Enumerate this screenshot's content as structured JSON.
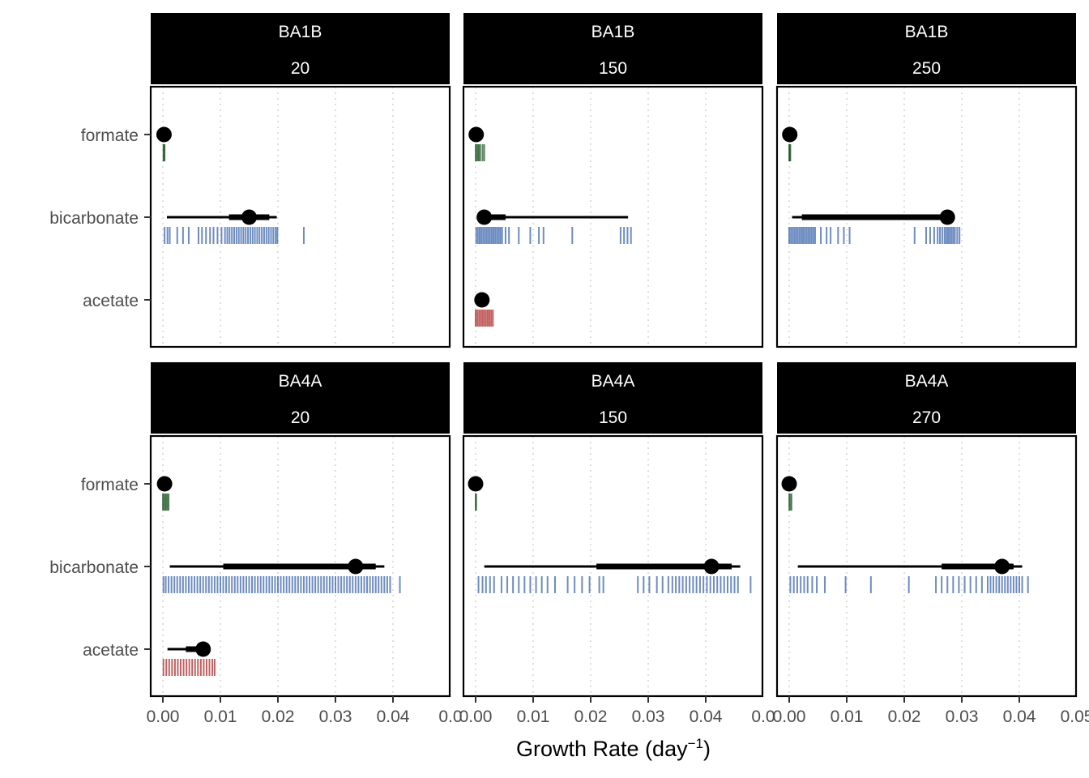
{
  "chart_data": {
    "type": "pointinterval-rug",
    "xlabel_main": "Growth Rate (day",
    "xlabel_sup": "−1",
    "xlabel_close": ")",
    "xlim": [
      0,
      0.05
    ],
    "x_ticks": [
      0.0,
      0.01,
      0.02,
      0.03,
      0.04,
      0.05
    ],
    "x_tick_labels": [
      "0.00",
      "0.01",
      "0.02",
      "0.03",
      "0.04",
      "0.05"
    ],
    "x_tick_labels_clipped": [
      "0.00",
      "0.01",
      "0.02",
      "0.03",
      "0.04",
      "0.0"
    ],
    "grid": "vertical dotted",
    "categories": [
      "formate",
      "bicarbonate",
      "acetate"
    ],
    "category_colors": {
      "formate": "#0d4a12",
      "bicarbonate": "#1f4fa0",
      "acetate": "#a30d0d"
    },
    "panels": [
      {
        "strip": [
          "BA1B",
          "20"
        ],
        "series": [
          {
            "category": "formate",
            "point": 0.0002,
            "interval_inner": [
              0.0001,
              0.0003
            ],
            "interval_outer": [
              0.0001,
              0.0004
            ],
            "rug": [
              0.0001,
              0.0002,
              0.0003
            ]
          },
          {
            "category": "bicarbonate",
            "point": 0.015,
            "interval_inner": [
              0.0115,
              0.0185
            ],
            "interval_outer": [
              0.0007,
              0.0198
            ],
            "rug": [
              0.0003,
              0.0008,
              0.0012,
              0.0025,
              0.0035,
              0.0045,
              0.0062,
              0.0068,
              0.0075,
              0.0082,
              0.0088,
              0.0095,
              0.0102,
              0.0108,
              0.0112,
              0.0116,
              0.012,
              0.0124,
              0.0128,
              0.0132,
              0.0136,
              0.014,
              0.0144,
              0.0148,
              0.0152,
              0.0156,
              0.016,
              0.0164,
              0.0168,
              0.0172,
              0.0176,
              0.018,
              0.0184,
              0.0188,
              0.0192,
              0.0196,
              0.0199,
              0.0245
            ]
          }
        ]
      },
      {
        "strip": [
          "BA1B",
          "150"
        ],
        "series": [
          {
            "category": "formate",
            "point": 0.0001,
            "interval_inner": [
              0.0,
              0.0002
            ],
            "interval_outer": [
              0.0,
              0.0003
            ],
            "rug": [
              0.0,
              0.0002,
              0.0004,
              0.0006,
              0.0008,
              0.0012,
              0.0015
            ]
          },
          {
            "category": "bicarbonate",
            "point": 0.0015,
            "interval_inner": [
              0.0005,
              0.0052
            ],
            "interval_outer": [
              0.0004,
              0.0265
            ],
            "rug": [
              0.0001,
              0.0004,
              0.0007,
              0.001,
              0.0013,
              0.0016,
              0.0019,
              0.0022,
              0.0025,
              0.0028,
              0.0031,
              0.0034,
              0.0037,
              0.004,
              0.0043,
              0.0046,
              0.0052,
              0.0058,
              0.0075,
              0.0095,
              0.011,
              0.0118,
              0.0168,
              0.0252,
              0.0258,
              0.0264,
              0.027
            ]
          },
          {
            "category": "acetate",
            "point": 0.0011,
            "interval_inner": [
              0.0008,
              0.0014
            ],
            "interval_outer": [
              0.0006,
              0.0016
            ],
            "rug": [
              0.0,
              0.0003,
              0.0006,
              0.0009,
              0.0012,
              0.0015,
              0.0018,
              0.0021,
              0.0024,
              0.0027,
              0.003
            ]
          }
        ]
      },
      {
        "strip": [
          "BA1B",
          "250"
        ],
        "series": [
          {
            "category": "formate",
            "point": 0.0001,
            "interval_inner": [
              0.0,
              0.0002
            ],
            "interval_outer": [
              0.0,
              0.0002
            ],
            "rug": [
              0.0,
              0.0001,
              0.0002
            ]
          },
          {
            "category": "bicarbonate",
            "point": 0.0275,
            "interval_inner": [
              0.0022,
              0.028
            ],
            "interval_outer": [
              0.0005,
              0.0285
            ],
            "rug": [
              0.0,
              0.0003,
              0.0006,
              0.0009,
              0.0012,
              0.0015,
              0.0018,
              0.0021,
              0.0024,
              0.0027,
              0.003,
              0.0033,
              0.0036,
              0.0039,
              0.0042,
              0.0045,
              0.0055,
              0.0065,
              0.0072,
              0.0085,
              0.0095,
              0.0105,
              0.0218,
              0.0238,
              0.0245,
              0.0252,
              0.0258,
              0.0262,
              0.0266,
              0.027,
              0.0273,
              0.0276,
              0.0279,
              0.0282,
              0.0285,
              0.0288,
              0.0292,
              0.0296
            ]
          }
        ]
      },
      {
        "strip": [
          "BA4A",
          "20"
        ],
        "series": [
          {
            "category": "formate",
            "point": 0.0003,
            "interval_inner": [
              0.0001,
              0.0005
            ],
            "interval_outer": [
              0.0,
              0.0006
            ],
            "rug": [
              0.0,
              0.0002,
              0.0004,
              0.0006,
              0.0008,
              0.001
            ]
          },
          {
            "category": "bicarbonate",
            "point": 0.0335,
            "interval_inner": [
              0.0105,
              0.037
            ],
            "interval_outer": [
              0.0012,
              0.0385
            ],
            "rug": [
              0.0001,
              0.0005,
              0.001,
              0.0015,
              0.002,
              0.0025,
              0.003,
              0.0035,
              0.004,
              0.0045,
              0.005,
              0.0055,
              0.006,
              0.0065,
              0.007,
              0.0075,
              0.008,
              0.0085,
              0.009,
              0.0095,
              0.01,
              0.0105,
              0.011,
              0.0115,
              0.012,
              0.0125,
              0.013,
              0.0135,
              0.014,
              0.0145,
              0.015,
              0.0155,
              0.016,
              0.0165,
              0.017,
              0.0175,
              0.018,
              0.0185,
              0.019,
              0.0195,
              0.02,
              0.0205,
              0.021,
              0.0215,
              0.022,
              0.0225,
              0.023,
              0.0235,
              0.024,
              0.0245,
              0.025,
              0.0255,
              0.026,
              0.0265,
              0.027,
              0.0275,
              0.028,
              0.0285,
              0.029,
              0.0295,
              0.03,
              0.0305,
              0.031,
              0.0315,
              0.032,
              0.0325,
              0.033,
              0.0335,
              0.034,
              0.0345,
              0.035,
              0.0355,
              0.036,
              0.0365,
              0.037,
              0.0375,
              0.038,
              0.0385,
              0.039,
              0.0395,
              0.0412
            ]
          },
          {
            "category": "acetate",
            "point": 0.007,
            "interval_inner": [
              0.004,
              0.0078
            ],
            "interval_outer": [
              0.0008,
              0.0082
            ],
            "rug": [
              0.0001,
              0.0006,
              0.0011,
              0.0016,
              0.0021,
              0.0026,
              0.0031,
              0.0036,
              0.0041,
              0.0046,
              0.0051,
              0.0056,
              0.0061,
              0.0066,
              0.0071,
              0.0076,
              0.0081,
              0.0086,
              0.009
            ]
          }
        ]
      },
      {
        "strip": [
          "BA4A",
          "150"
        ],
        "series": [
          {
            "category": "formate",
            "point": 0.0,
            "interval_inner": [
              0.0,
              0.0001
            ],
            "interval_outer": [
              0.0,
              0.0001
            ],
            "rug": [
              0.0,
              0.0001
            ]
          },
          {
            "category": "bicarbonate",
            "point": 0.041,
            "interval_inner": [
              0.021,
              0.0445
            ],
            "interval_outer": [
              0.0015,
              0.046
            ],
            "rug": [
              0.0005,
              0.0012,
              0.0018,
              0.0025,
              0.0032,
              0.0045,
              0.0055,
              0.0065,
              0.0075,
              0.0085,
              0.0095,
              0.0105,
              0.0115,
              0.0125,
              0.0138,
              0.016,
              0.0172,
              0.0185,
              0.0198,
              0.0215,
              0.0222,
              0.0282,
              0.0292,
              0.0302,
              0.0315,
              0.0325,
              0.0335,
              0.0342,
              0.0348,
              0.0354,
              0.036,
              0.0366,
              0.0372,
              0.0378,
              0.0384,
              0.039,
              0.0396,
              0.0402,
              0.0408,
              0.0414,
              0.042,
              0.0426,
              0.0432,
              0.0438,
              0.0444,
              0.045,
              0.0456,
              0.0478
            ]
          }
        ]
      },
      {
        "strip": [
          "BA4A",
          "270"
        ],
        "series": [
          {
            "category": "formate",
            "point": 0.0,
            "interval_inner": [
              0.0,
              0.0001
            ],
            "interval_outer": [
              0.0,
              0.0001
            ],
            "rug": [
              0.0,
              0.0002,
              0.0004
            ]
          },
          {
            "category": "bicarbonate",
            "point": 0.037,
            "interval_inner": [
              0.0265,
              0.039
            ],
            "interval_outer": [
              0.0015,
              0.0405
            ],
            "rug": [
              0.0002,
              0.0008,
              0.0014,
              0.002,
              0.0026,
              0.0032,
              0.004,
              0.0048,
              0.0062,
              0.0098,
              0.0142,
              0.0208,
              0.0255,
              0.0265,
              0.0275,
              0.0285,
              0.0295,
              0.0305,
              0.0315,
              0.0325,
              0.0335,
              0.0345,
              0.035,
              0.0355,
              0.036,
              0.0365,
              0.037,
              0.0375,
              0.038,
              0.0385,
              0.039,
              0.0395,
              0.04,
              0.0405,
              0.0415
            ]
          }
        ]
      }
    ]
  }
}
